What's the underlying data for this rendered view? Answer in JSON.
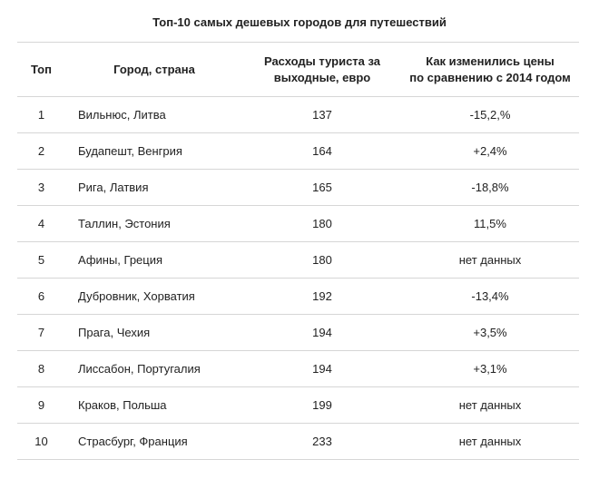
{
  "title": "Топ-10 самых дешевых городов для путешествий",
  "headers": {
    "rank": "Топ",
    "city": "Город, страна",
    "cost_line1": "Расходы туриста за",
    "cost_line2": "выходные, евро",
    "change_line1": "Как изменились цены",
    "change_line2": "по сравнению с 2014 годом"
  },
  "rows": [
    {
      "rank": "1",
      "city": "Вильнюс, Литва",
      "cost": "137",
      "change": "-15,2,%"
    },
    {
      "rank": "2",
      "city": "Будапешт, Венгрия",
      "cost": "164",
      "change": "+2,4%"
    },
    {
      "rank": "3",
      "city": "Рига, Латвия",
      "cost": "165",
      "change": "-18,8%"
    },
    {
      "rank": "4",
      "city": "Таллин, Эстония",
      "cost": "180",
      "change": "11,5%"
    },
    {
      "rank": "5",
      "city": "Афины, Греция",
      "cost": "180",
      "change": "нет данных"
    },
    {
      "rank": "6",
      "city": "Дубровник, Хорватия",
      "cost": "192",
      "change": "-13,4%"
    },
    {
      "rank": "7",
      "city": "Прага, Чехия",
      "cost": "194",
      "change": "+3,5%"
    },
    {
      "rank": "8",
      "city": "Лиссабон, Португалия",
      "cost": "194",
      "change": "+3,1%"
    },
    {
      "rank": "9",
      "city": "Краков, Польша",
      "cost": "199",
      "change": "нет данных"
    },
    {
      "rank": "10",
      "city": "Страсбург, Франция",
      "cost": "233",
      "change": "нет данных"
    }
  ]
}
